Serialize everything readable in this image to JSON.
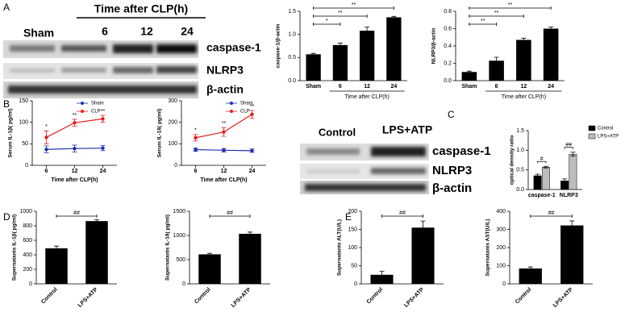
{
  "panel_labels": [
    "A",
    "B",
    "C",
    "D",
    "E"
  ],
  "blots": [
    {
      "header": "Time after CLP(h)",
      "lanes": [
        "Sham",
        "6",
        "12",
        "24"
      ],
      "rows": [
        "caspase-1",
        "NLRP3",
        "β-actin"
      ]
    },
    {
      "lanes": [
        "Control",
        "LPS+ATP"
      ],
      "rows": [
        "caspase-1",
        "NLRP3",
        "β-actin"
      ]
    }
  ],
  "chart_data": [
    {
      "type": "bar",
      "ylabel": "caspase-1/β-actin",
      "xlabel": "Time after CLP(h)",
      "categories": [
        "Sham",
        "6",
        "12",
        "24"
      ],
      "values": [
        0.57,
        0.77,
        1.08,
        1.37
      ],
      "errors": [
        0.02,
        0.04,
        0.08,
        0.02
      ],
      "color": "#000000",
      "ylim": [
        0,
        1.5
      ],
      "yticks": [
        {
          "value": 0,
          "label": "0.0"
        },
        {
          "value": 0.5,
          "label": "0.5"
        },
        {
          "value": 1,
          "label": "1.0"
        },
        {
          "value": 1.5,
          "label": "1.5"
        }
      ],
      "annotations": [
        "*",
        "**",
        "**"
      ]
    },
    {
      "type": "bar",
      "ylabel": "NLRP3/β-actin",
      "xlabel": "Time after CLP(h)",
      "categories": [
        "Sham",
        "6",
        "12",
        "24"
      ],
      "values": [
        0.1,
        0.23,
        0.47,
        0.6
      ],
      "errors": [
        0.01,
        0.04,
        0.02,
        0.02
      ],
      "color": "#000000",
      "ylim": [
        0,
        0.8
      ],
      "yticks": [
        {
          "value": 0,
          "label": "0.0"
        },
        {
          "value": 0.2,
          "label": "0.2"
        },
        {
          "value": 0.4,
          "label": "0.4"
        },
        {
          "value": 0.6,
          "label": "0.6"
        },
        {
          "value": 0.8,
          "label": "0.8"
        }
      ],
      "annotations": [
        "**",
        "**",
        "**"
      ]
    },
    {
      "type": "line",
      "ylabel": "Serum IL-1β( pg/ml)",
      "xlabel": "Time after CLP(h)",
      "categories": [
        "6",
        "12",
        "24"
      ],
      "series": [
        {
          "name": "Sham",
          "color": "#1f2fb0",
          "values": [
            37,
            39,
            40
          ],
          "errors": [
            8,
            8,
            6
          ]
        },
        {
          "name": "CLP",
          "color": "#e02020",
          "values": [
            65,
            99,
            108
          ],
          "errors": [
            15,
            8,
            8
          ]
        }
      ],
      "ylim": [
        0,
        150
      ],
      "yticks": [
        0,
        50,
        100,
        150
      ],
      "annotations": [
        "*",
        "**",
        "**"
      ]
    },
    {
      "type": "line",
      "ylabel": "Serum IL-18( pg/ml)",
      "xlabel": "Time after CLP(h)",
      "categories": [
        "6",
        "12",
        "24"
      ],
      "series": [
        {
          "name": "Sham",
          "color": "#1f2fb0",
          "values": [
            73,
            70,
            68
          ],
          "errors": [
            8,
            8,
            8
          ]
        },
        {
          "name": "CLP",
          "color": "#e02020",
          "values": [
            128,
            155,
            237
          ],
          "errors": [
            15,
            20,
            18
          ]
        }
      ],
      "ylim": [
        0,
        300
      ],
      "yticks": [
        0,
        100,
        200,
        300
      ],
      "annotations": [
        "*",
        "**",
        "**"
      ]
    },
    {
      "type": "bar",
      "ylabel": "optical density ratio",
      "categories": [
        "caspase-1",
        "NLRP3"
      ],
      "series": [
        {
          "name": "Control",
          "color": "#000000",
          "values": [
            0.35,
            0.22
          ],
          "errors": [
            0.04,
            0.05
          ]
        },
        {
          "name": "LPS+ATP",
          "color": "#bdbdbd",
          "values": [
            0.57,
            0.9
          ],
          "errors": [
            0.02,
            0.05
          ]
        }
      ],
      "ylim": [
        0,
        1.5
      ],
      "yticks": [
        {
          "value": 0,
          "label": "0.0"
        },
        {
          "value": 0.5,
          "label": "0.5"
        },
        {
          "value": 1,
          "label": "1.0"
        },
        {
          "value": 1.5,
          "label": "1.5"
        }
      ],
      "annotations": [
        "#",
        "##"
      ]
    },
    {
      "type": "bar",
      "ylabel": "Supernatants IL-1β( pg/ml)",
      "categories": [
        "Control",
        "LPS+ATP"
      ],
      "values": [
        490,
        865
      ],
      "errors": [
        30,
        20
      ],
      "color": "#000000",
      "ylim": [
        0,
        1000
      ],
      "yticks": [
        0,
        200,
        400,
        600,
        800,
        1000
      ],
      "annotations": [
        "##"
      ]
    },
    {
      "type": "bar",
      "ylabel": "Supernatants IL-18( pg/ml)",
      "categories": [
        "Control",
        "LPS+ATP"
      ],
      "values": [
        610,
        1035
      ],
      "errors": [
        20,
        35
      ],
      "color": "#000000",
      "ylim": [
        0,
        1500
      ],
      "yticks": [
        0,
        500,
        1000,
        1500
      ],
      "annotations": [
        "##"
      ]
    },
    {
      "type": "bar",
      "ylabel": "Supernatants ALT(U/L)",
      "categories": [
        "Control",
        "LPS+ATP"
      ],
      "values": [
        25,
        155
      ],
      "errors": [
        10,
        18
      ],
      "color": "#000000",
      "ylim": [
        0,
        200
      ],
      "yticks": [
        0,
        50,
        100,
        150,
        200
      ],
      "annotations": [
        "##"
      ]
    },
    {
      "type": "bar",
      "ylabel": "Supernatants AST(U/L)",
      "categories": [
        "Control",
        "LPS+ATP"
      ],
      "values": [
        85,
        322
      ],
      "errors": [
        8,
        25
      ],
      "color": "#000000",
      "ylim": [
        0,
        400
      ],
      "yticks": [
        0,
        100,
        200,
        300,
        400
      ],
      "annotations": [
        "##"
      ]
    }
  ]
}
